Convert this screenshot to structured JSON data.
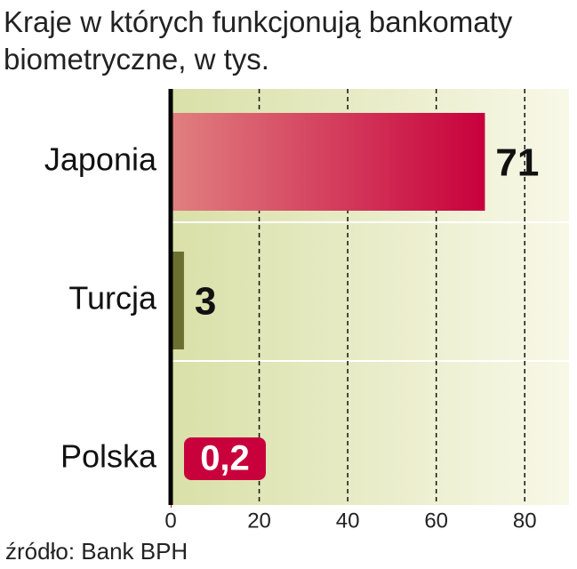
{
  "chart_data": {
    "type": "bar",
    "orientation": "horizontal",
    "title": "Kraje w których funkcjonują bankomaty biometryczne, w tys.",
    "categories": [
      "Japonia",
      "Turcja",
      "Polska"
    ],
    "values": [
      71,
      3,
      0.2
    ],
    "value_labels": [
      "71",
      "3",
      "0,2"
    ],
    "colors": [
      "#c8003c",
      "#6b7030",
      "#c8003c"
    ],
    "xlim": [
      0,
      90
    ],
    "xticks": [
      0,
      20,
      40,
      60,
      80
    ],
    "grid": true,
    "source": "źródło: Bank BPH"
  }
}
